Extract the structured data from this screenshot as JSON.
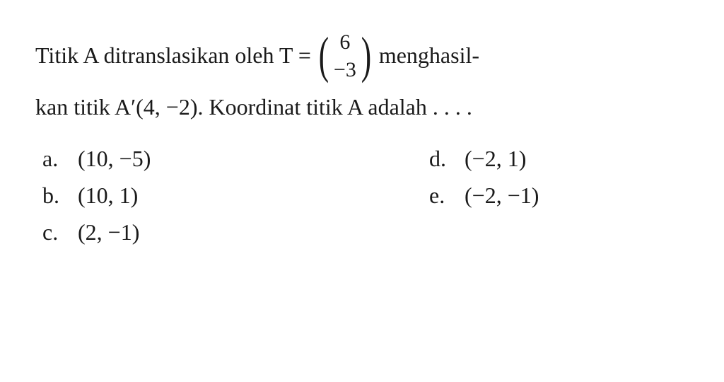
{
  "question": {
    "line1_part1": "Titik A ditranslasikan oleh T =",
    "matrix_top": "6",
    "matrix_bottom": "−3",
    "line1_part2": "menghasil-",
    "line2": "kan titik A′(4, −2). Koordinat titik A adalah . . . ."
  },
  "options": {
    "a": {
      "letter": "a.",
      "value": "(10, −5)"
    },
    "b": {
      "letter": "b.",
      "value": "(10, 1)"
    },
    "c": {
      "letter": "c.",
      "value": "(2, −1)"
    },
    "d": {
      "letter": "d.",
      "value": "(−2, 1)"
    },
    "e": {
      "letter": "e.",
      "value": "(−2, −1)"
    }
  },
  "styling": {
    "background_color": "#ffffff",
    "text_color": "#1a1a1a",
    "font_family": "Times New Roman",
    "question_fontsize": 32,
    "matrix_paren_fontsize": 72,
    "matrix_value_fontsize": 30,
    "option_fontsize": 32
  }
}
